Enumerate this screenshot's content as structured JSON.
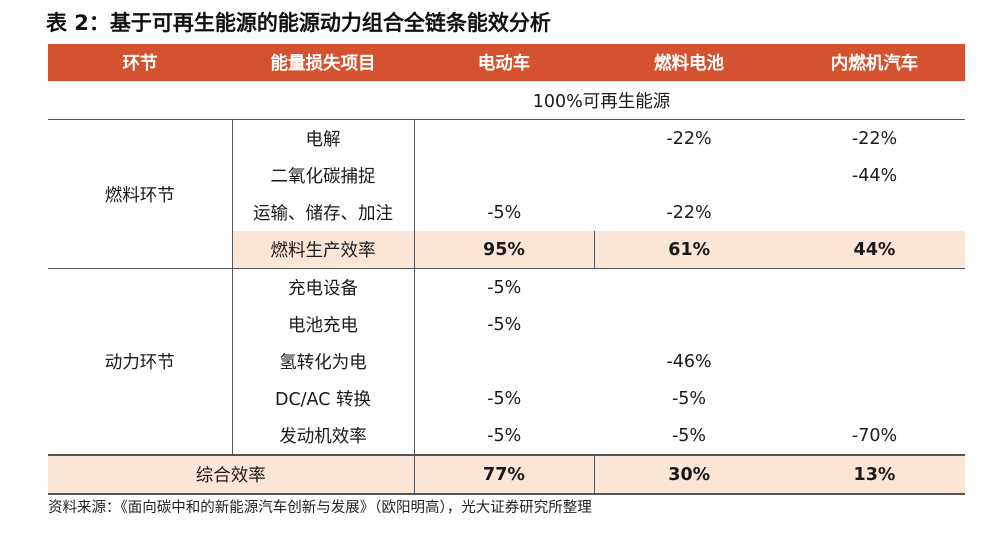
{
  "title": "表 2：基于可再生能源的能源动力组合全链条能效分析",
  "headers": [
    "环节",
    "能量损失项目",
    "电动车",
    "燃料电池",
    "内燃机汽车"
  ],
  "baseline": "100%可再生能源",
  "fuel_stage": {
    "label": "燃料环节",
    "rows": [
      {
        "item": "电解",
        "ev": "",
        "fc": "-22%",
        "ice": "-22%"
      },
      {
        "item": "二氧化碳捕捉",
        "ev": "",
        "fc": "",
        "ice": "-44%"
      },
      {
        "item": "运输、储存、加注",
        "ev": "-5%",
        "fc": "-22%",
        "ice": ""
      }
    ],
    "efficiency": {
      "item": "燃料生产效率",
      "ev": "95%",
      "fc": "61%",
      "ice": "44%"
    }
  },
  "power_stage": {
    "label": "动力环节",
    "rows": [
      {
        "item": "充电设备",
        "ev": "-5%",
        "fc": "",
        "ice": ""
      },
      {
        "item": "电池充电",
        "ev": "-5%",
        "fc": "",
        "ice": ""
      },
      {
        "item": "氢转化为电",
        "ev": "",
        "fc": "-46%",
        "ice": ""
      },
      {
        "item": "DC/AC 转换",
        "ev": "-5%",
        "fc": "-5%",
        "ice": ""
      },
      {
        "item": "发动机效率",
        "ev": "-5%",
        "fc": "-5%",
        "ice": "-70%"
      }
    ]
  },
  "total": {
    "label": "综合效率",
    "ev": "77%",
    "fc": "30%",
    "ice": "13%"
  },
  "source": "资料来源：《面向碳中和的新能源汽车创新与发展》（欧阳明高），光大证券研究所整理"
}
